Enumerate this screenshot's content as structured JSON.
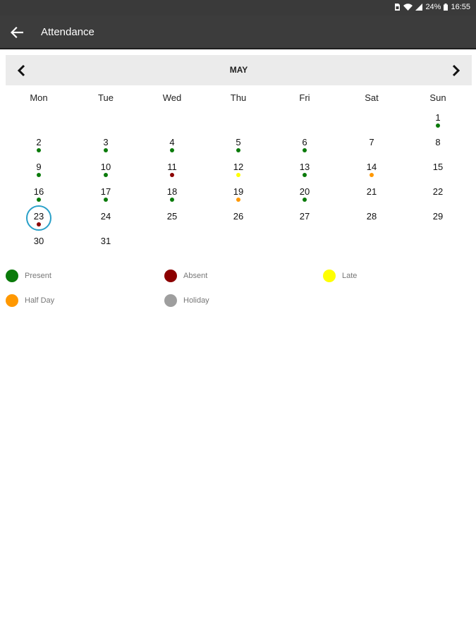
{
  "status_bar": {
    "battery": "24%",
    "time": "16:55",
    "icons": [
      "sim-icon",
      "wifi-icon",
      "signal-icon",
      "battery-icon"
    ]
  },
  "app_bar": {
    "title": "Attendance",
    "back_icon": "arrow-left-icon"
  },
  "calendar": {
    "month": "MAY",
    "prev_icon": "chevron-left-icon",
    "next_icon": "chevron-right-icon",
    "weekdays": [
      "Mon",
      "Tue",
      "Wed",
      "Thu",
      "Fri",
      "Sat",
      "Sun"
    ],
    "today": "23",
    "days": [
      {
        "day": "1",
        "status": "present"
      },
      {
        "day": "2",
        "status": "present"
      },
      {
        "day": "3",
        "status": "present"
      },
      {
        "day": "4",
        "status": "present"
      },
      {
        "day": "5",
        "status": "present"
      },
      {
        "day": "6",
        "status": "present"
      },
      {
        "day": "7",
        "status": ""
      },
      {
        "day": "8",
        "status": ""
      },
      {
        "day": "9",
        "status": "present"
      },
      {
        "day": "10",
        "status": "present"
      },
      {
        "day": "11",
        "status": "absent"
      },
      {
        "day": "12",
        "status": "late"
      },
      {
        "day": "13",
        "status": "present"
      },
      {
        "day": "14",
        "status": "half_day"
      },
      {
        "day": "15",
        "status": ""
      },
      {
        "day": "16",
        "status": "present"
      },
      {
        "day": "17",
        "status": "present"
      },
      {
        "day": "18",
        "status": "present"
      },
      {
        "day": "19",
        "status": "half_day"
      },
      {
        "day": "20",
        "status": "present"
      },
      {
        "day": "21",
        "status": ""
      },
      {
        "day": "22",
        "status": ""
      },
      {
        "day": "23",
        "status": "absent"
      },
      {
        "day": "24",
        "status": ""
      },
      {
        "day": "25",
        "status": ""
      },
      {
        "day": "26",
        "status": ""
      },
      {
        "day": "27",
        "status": ""
      },
      {
        "day": "28",
        "status": ""
      },
      {
        "day": "29",
        "status": ""
      },
      {
        "day": "30",
        "status": ""
      },
      {
        "day": "31",
        "status": ""
      }
    ]
  },
  "legend": [
    {
      "key": "present",
      "label": "Present",
      "color": "#0a7a0a"
    },
    {
      "key": "absent",
      "label": "Absent",
      "color": "#8b0000"
    },
    {
      "key": "late",
      "label": "Late",
      "color": "#ffff00"
    },
    {
      "key": "half_day",
      "label": "Half Day",
      "color": "#ff9800"
    },
    {
      "key": "holiday",
      "label": "Holiday",
      "color": "#9e9e9e"
    }
  ],
  "colors": {
    "toolbar": "#3c3c3c",
    "status_bar": "#3a3a3a",
    "month_header": "#ebebeb",
    "today_ring": "#2aa0c8"
  }
}
